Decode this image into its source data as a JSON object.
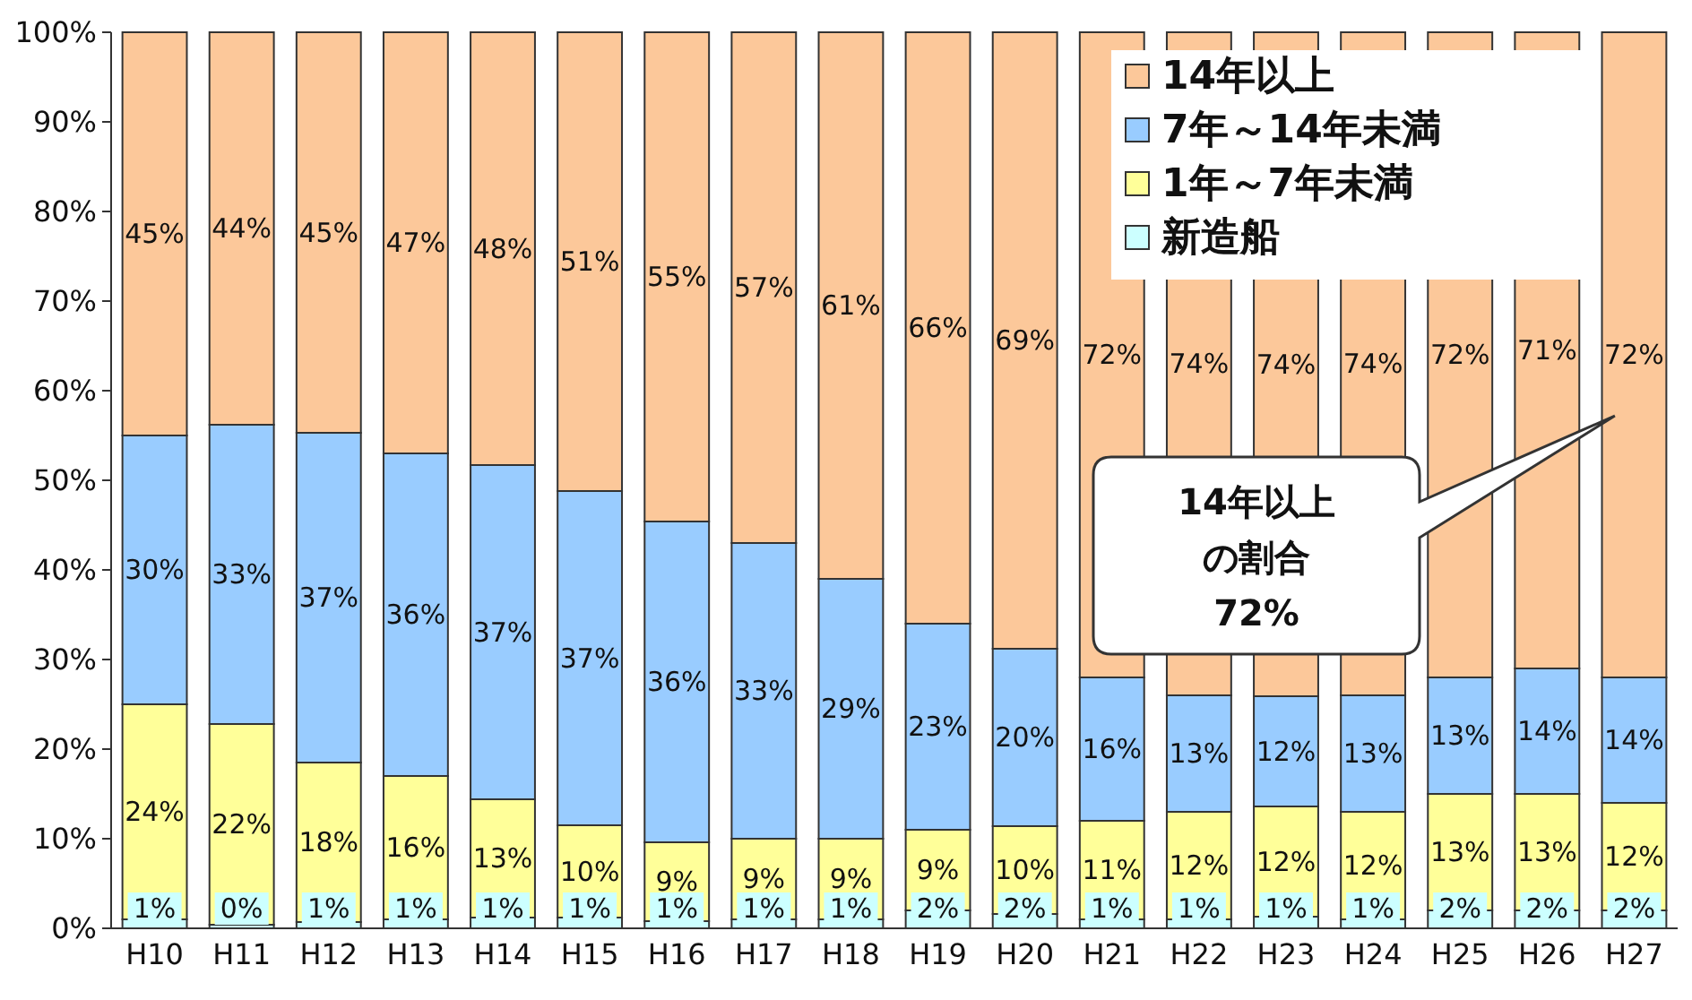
{
  "chart_data": {
    "type": "bar",
    "stacked": true,
    "categories": [
      "H10",
      "H11",
      "H12",
      "H13",
      "H14",
      "H15",
      "H16",
      "H17",
      "H18",
      "H19",
      "H20",
      "H21",
      "H22",
      "H23",
      "H24",
      "H25",
      "H26",
      "H27"
    ],
    "ylim": [
      0,
      100
    ],
    "yticks": [
      {
        "value": 0,
        "label": "0%"
      },
      {
        "value": 10,
        "label": "10%"
      },
      {
        "value": 20,
        "label": "20%"
      },
      {
        "value": 30,
        "label": "30%"
      },
      {
        "value": 40,
        "label": "40%"
      },
      {
        "value": 50,
        "label": "50%"
      },
      {
        "value": 60,
        "label": "60%"
      },
      {
        "value": 70,
        "label": "70%"
      },
      {
        "value": 80,
        "label": "80%"
      },
      {
        "value": 90,
        "label": "90%"
      },
      {
        "value": 100,
        "label": "100%"
      }
    ],
    "grid": false,
    "legend": "top right",
    "series": [
      {
        "name": "新造船",
        "color": "#ccffff",
        "values": [
          1,
          0.4,
          0.7,
          1,
          1.2,
          1.2,
          0.8,
          1,
          1,
          2,
          1.6,
          1,
          1,
          1.3,
          1,
          2,
          2,
          2
        ],
        "value_labels": [
          "1%",
          "0%",
          "1%",
          "1%",
          "1%",
          "1%",
          "1%",
          "1%",
          "1%",
          "2%",
          "2%",
          "1%",
          "1%",
          "1%",
          "1%",
          "2%",
          "2%",
          "2%"
        ]
      },
      {
        "name": "1年～7年未満",
        "color": "#ffff99",
        "values": [
          24,
          22.4,
          17.8,
          16,
          13.2,
          10.3,
          8.8,
          9,
          9,
          9,
          9.8,
          11,
          12,
          12.3,
          12,
          13,
          13,
          12
        ],
        "value_labels": [
          "24%",
          "22%",
          "18%",
          "16%",
          "13%",
          "10%",
          "9%",
          "9%",
          "9%",
          "9%",
          "10%",
          "11%",
          "12%",
          "12%",
          "12%",
          "13%",
          "13%",
          "12%"
        ]
      },
      {
        "name": "7年～14年未満",
        "color": "#99ccff",
        "values": [
          30,
          33.4,
          36.8,
          36,
          37.3,
          37.3,
          35.8,
          33,
          29,
          23,
          19.8,
          16,
          13,
          12.3,
          13,
          13,
          14,
          14
        ],
        "value_labels": [
          "30%",
          "33%",
          "37%",
          "36%",
          "37%",
          "37%",
          "36%",
          "33%",
          "29%",
          "23%",
          "20%",
          "16%",
          "13%",
          "12%",
          "13%",
          "13%",
          "14%",
          "14%"
        ]
      },
      {
        "name": "14年以上",
        "color": "#fcc89a",
        "values": [
          45,
          43.8,
          44.7,
          47,
          48.3,
          51.2,
          54.6,
          57,
          61,
          66,
          68.8,
          72,
          74,
          74.1,
          74,
          72,
          71,
          72
        ],
        "value_labels": [
          "45%",
          "44%",
          "45%",
          "47%",
          "48%",
          "51%",
          "55%",
          "57%",
          "61%",
          "66%",
          "69%",
          "72%",
          "74%",
          "74%",
          "74%",
          "72%",
          "71%",
          "72%"
        ]
      }
    ],
    "annotations": [
      "14年以上の割合72%"
    ]
  }
}
